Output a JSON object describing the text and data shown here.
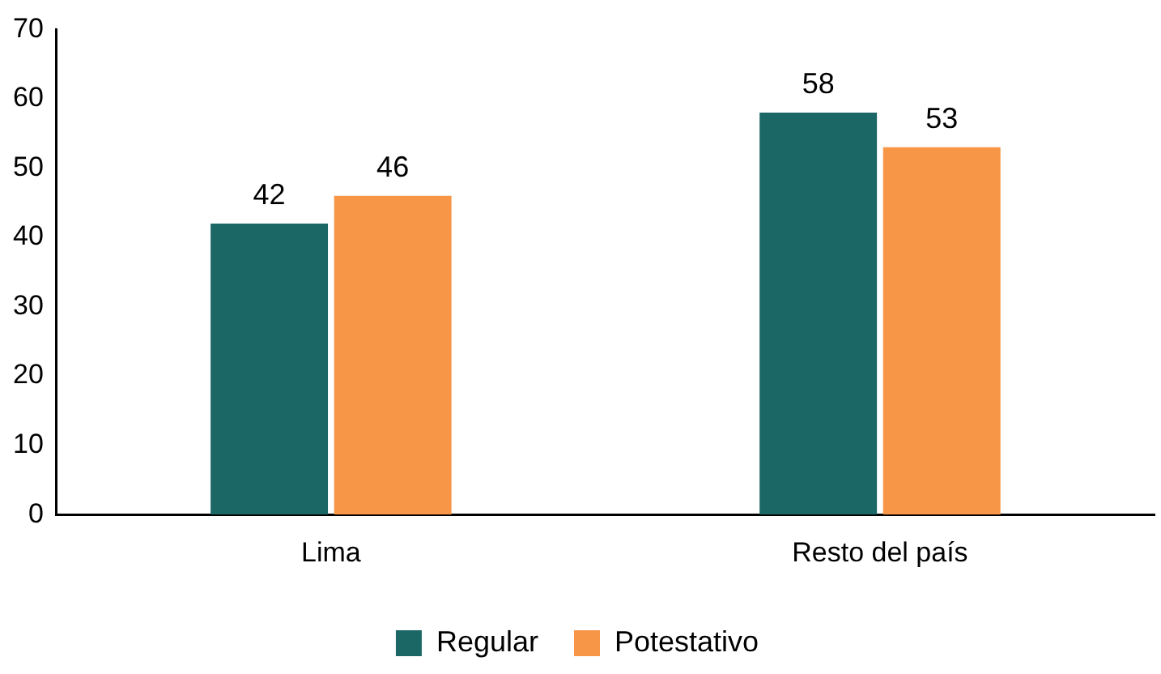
{
  "chart_data": {
    "type": "bar",
    "categories": [
      "Lima",
      "Resto del país"
    ],
    "series": [
      {
        "name": "Regular",
        "color": "#1b6766",
        "values": [
          42,
          58
        ]
      },
      {
        "name": "Potestativo",
        "color": "#f79646",
        "values": [
          46,
          53
        ]
      }
    ],
    "ylim": [
      0,
      70
    ],
    "yticks": [
      0,
      10,
      20,
      30,
      40,
      50,
      60,
      70
    ],
    "grid": false,
    "legend": "bottom",
    "data_labels": true
  }
}
